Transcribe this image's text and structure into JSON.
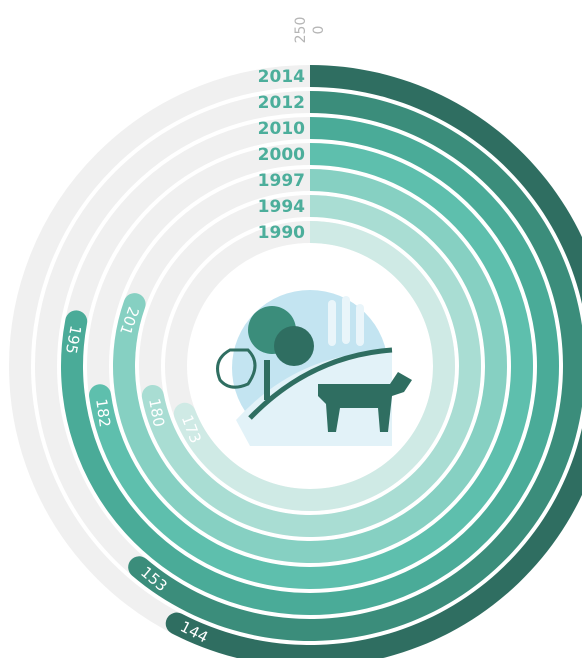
{
  "chart_data": {
    "type": "radial_bar",
    "categories": [
      "2014",
      "2012",
      "2010",
      "2000",
      "1997",
      "1994",
      "1990"
    ],
    "values": [
      144,
      153,
      195,
      182,
      201,
      180,
      173
    ],
    "colors": [
      "#2f6e61",
      "#3b8d7b",
      "#4aab98",
      "#5ebfad",
      "#86d0c2",
      "#a9ddd3",
      "#cfeae5"
    ],
    "track_color": "#f0f0f0",
    "ylim": [
      0,
      250
    ],
    "yticks": [
      0,
      250
    ]
  }
}
